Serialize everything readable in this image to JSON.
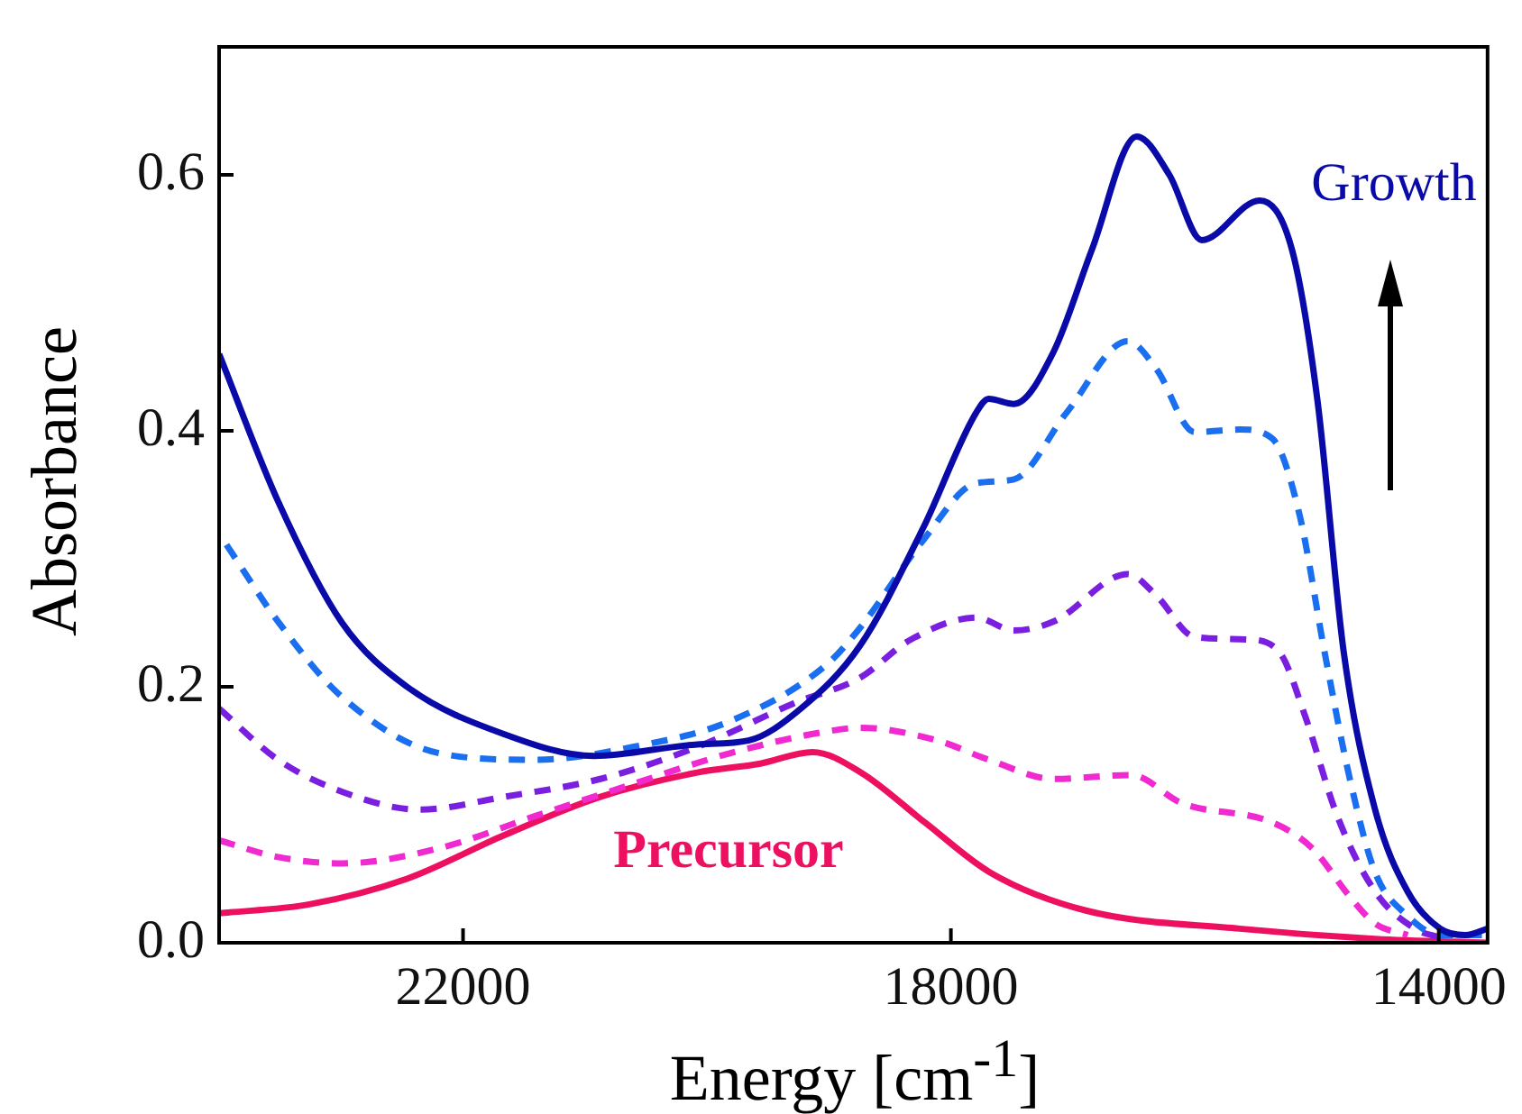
{
  "chart_data": {
    "type": "line",
    "xlabel": "Energy [cm$^{-1}$]",
    "ylabel": "Absorbance",
    "xlim": [
      24000,
      13600
    ],
    "xticks": [
      22000,
      18000,
      14000
    ],
    "ylim": [
      0,
      0.7
    ],
    "yticks": [
      {
        "value": 0,
        "label": "0.0"
      },
      {
        "value": 0.2,
        "label": "0.2"
      },
      {
        "value": 0.4,
        "label": "0.4"
      },
      {
        "value": 0.6,
        "label": "0.6"
      }
    ],
    "grid": false,
    "legend": false,
    "marker": "none",
    "series": [
      {
        "color": "#0a0aa8",
        "line_style": "solid",
        "x": [
          24000,
          23517,
          22992,
          22459,
          21665,
          20925,
          20079,
          19660,
          19230,
          18746,
          18223,
          17794,
          17690,
          17483,
          17157,
          16846,
          16476,
          16209,
          15943,
          15469,
          15202,
          14995,
          14779,
          14522,
          14255,
          13988,
          13781,
          13600
        ],
        "values": [
          0.46,
          0.345,
          0.25,
          0.2,
          0.163,
          0.146,
          0.155,
          0.158,
          0.183,
          0.232,
          0.325,
          0.414,
          0.425,
          0.421,
          0.462,
          0.541,
          0.63,
          0.6,
          0.549,
          0.58,
          0.541,
          0.424,
          0.227,
          0.104,
          0.04,
          0.011,
          0.006,
          0.011
        ]
      },
      {
        "color": "#1a6ff0",
        "line_style": "dashed",
        "x": [
          23940,
          23517,
          22992,
          22190,
          21408,
          20608,
          19814,
          19023,
          18746,
          18223,
          17794,
          17483,
          17053,
          16550,
          16313,
          16002,
          15632,
          15365,
          15143,
          14936,
          14729,
          14522,
          14255,
          13988,
          13600
        ],
        "values": [
          0.311,
          0.251,
          0.192,
          0.148,
          0.143,
          0.153,
          0.173,
          0.217,
          0.246,
          0.315,
          0.359,
          0.362,
          0.414,
          0.47,
          0.448,
          0.399,
          0.401,
          0.394,
          0.335,
          0.227,
          0.128,
          0.055,
          0.021,
          0.006,
          0.006
        ]
      },
      {
        "color": "#7a1ee0",
        "line_style": "dashed",
        "x": [
          24000,
          23517,
          22992,
          22355,
          21665,
          20874,
          20079,
          19290,
          18746,
          18327,
          17794,
          17483,
          17157,
          16550,
          16313,
          16002,
          15573,
          15306,
          15099,
          14832,
          14522,
          14195,
          13988
        ],
        "values": [
          0.183,
          0.143,
          0.118,
          0.104,
          0.114,
          0.128,
          0.153,
          0.187,
          0.207,
          0.237,
          0.254,
          0.244,
          0.251,
          0.288,
          0.271,
          0.239,
          0.237,
          0.227,
          0.178,
          0.099,
          0.04,
          0.011,
          0.004
        ]
      },
      {
        "color": "#f02ad0",
        "line_style": "dashed",
        "x": [
          24000,
          23517,
          22992,
          22190,
          21408,
          20608,
          19814,
          19023,
          18746,
          18111,
          17690,
          17157,
          16521,
          16106,
          15365,
          15039,
          14729,
          14522,
          14255
        ],
        "values": [
          0.08,
          0.067,
          0.062,
          0.074,
          0.099,
          0.124,
          0.148,
          0.165,
          0.168,
          0.158,
          0.143,
          0.128,
          0.131,
          0.109,
          0.094,
          0.074,
          0.036,
          0.015,
          0.006
        ]
      },
      {
        "color": "#ee1060",
        "line_style": "solid",
        "x": [
          24000,
          23260,
          22459,
          21665,
          20874,
          20079,
          19562,
          19134,
          18737,
          18213,
          17680,
          16886,
          15632,
          14522,
          13600
        ],
        "values": [
          0.023,
          0.03,
          0.05,
          0.084,
          0.114,
          0.133,
          0.14,
          0.149,
          0.133,
          0.094,
          0.055,
          0.025,
          0.011,
          0.003,
          0
        ]
      }
    ],
    "annotations": [
      "Growth",
      "Precursor"
    ]
  }
}
